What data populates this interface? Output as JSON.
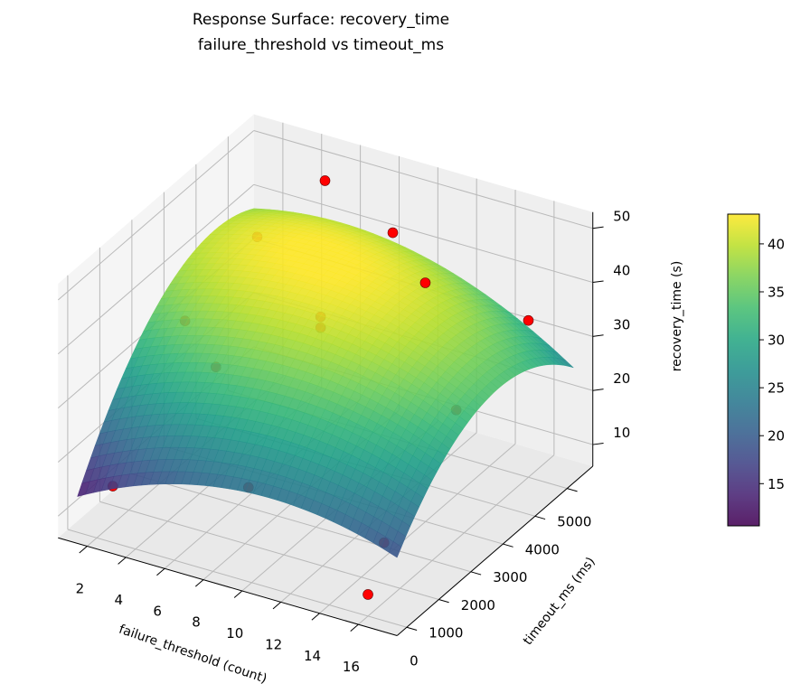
{
  "chart_data": {
    "type": "surface",
    "title": "Response Surface: recovery_time",
    "subtitle": "failure_threshold vs timeout_ms",
    "xlabel": "failure_threshold (count)",
    "ylabel": "timeout_ms (ms)",
    "zlabel": "recovery_time (s)",
    "xlim": [
      0.5,
      18
    ],
    "ylim": [
      -300,
      5800
    ],
    "zlim": [
      6,
      53
    ],
    "xticks": [
      2,
      4,
      6,
      8,
      10,
      12,
      14,
      16
    ],
    "yticks": [
      0,
      1000,
      2000,
      3000,
      4000,
      5000
    ],
    "zticks": [
      10,
      20,
      30,
      40,
      50
    ],
    "grid": true,
    "view": {
      "elevation": 30,
      "azimuth": -60
    },
    "colormap": "viridis",
    "surface": {
      "fit": "quadratic",
      "x_range": [
        1,
        17.5
      ],
      "y_range": [
        0,
        5500
      ],
      "coefficients": {
        "intercept": 10.5,
        "x": 2.2,
        "x2": -0.1,
        "y": 0.013,
        "y2": -1.5e-06,
        "xy": -0.0002
      },
      "opacity": 0.9
    },
    "points": [
      {
        "x": 2,
        "y": 500,
        "z": 13
      },
      {
        "x": 9,
        "y": 500,
        "z": 20
      },
      {
        "x": 16,
        "y": 500,
        "z": 17
      },
      {
        "x": 2,
        "y": 2750,
        "z": 32
      },
      {
        "x": 9,
        "y": 2750,
        "z": 40
      },
      {
        "x": 16,
        "y": 2750,
        "z": 30
      },
      {
        "x": 2,
        "y": 5000,
        "z": 36
      },
      {
        "x": 9,
        "y": 5000,
        "z": 44
      },
      {
        "x": 16,
        "y": 5000,
        "z": 35
      },
      {
        "x": 9,
        "y": 2750,
        "z": 38
      },
      {
        "x": 5.5,
        "y": 1600,
        "z": 33
      },
      {
        "x": 12.5,
        "y": 3900,
        "z": 44
      },
      {
        "x": 5.5,
        "y": 5000,
        "z": 50
      },
      {
        "x": 16,
        "y": 0,
        "z": 10
      }
    ],
    "point_color": "#ff0000",
    "colorbar": {
      "label": "recovery_time (s)",
      "range": [
        10.6,
        43.1
      ],
      "ticks": [
        15,
        20,
        25,
        30,
        35,
        40
      ]
    }
  }
}
